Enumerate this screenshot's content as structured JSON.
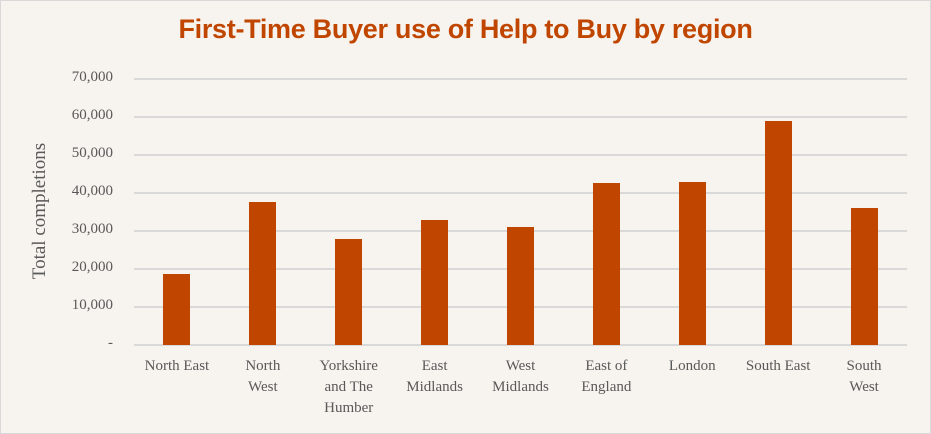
{
  "chart_data": {
    "type": "bar",
    "title": "First-Time Buyer use of Help to Buy by region",
    "xlabel": "",
    "ylabel": "Total completions",
    "ylim": [
      0,
      70000
    ],
    "yticks": [
      "-",
      "10,000",
      "20,000",
      "30,000",
      "40,000",
      "50,000",
      "60,000",
      "70,000"
    ],
    "grid": true,
    "legend": "none",
    "categories": [
      "North East",
      "North West",
      "Yorkshire and The Humber",
      "East Midlands",
      "West Midlands",
      "East of England",
      "London",
      "South East",
      "South West"
    ],
    "category_labels": [
      "North East",
      "North\nWest",
      "Yorkshire\nand The\nHumber",
      "East\nMidlands",
      "West\nMidlands",
      "East of\nEngland",
      "London",
      "South East",
      "South\nWest"
    ],
    "values": [
      18700,
      37600,
      27900,
      32900,
      31000,
      42600,
      42900,
      59000,
      36000
    ],
    "bar_color": "#c04600"
  }
}
